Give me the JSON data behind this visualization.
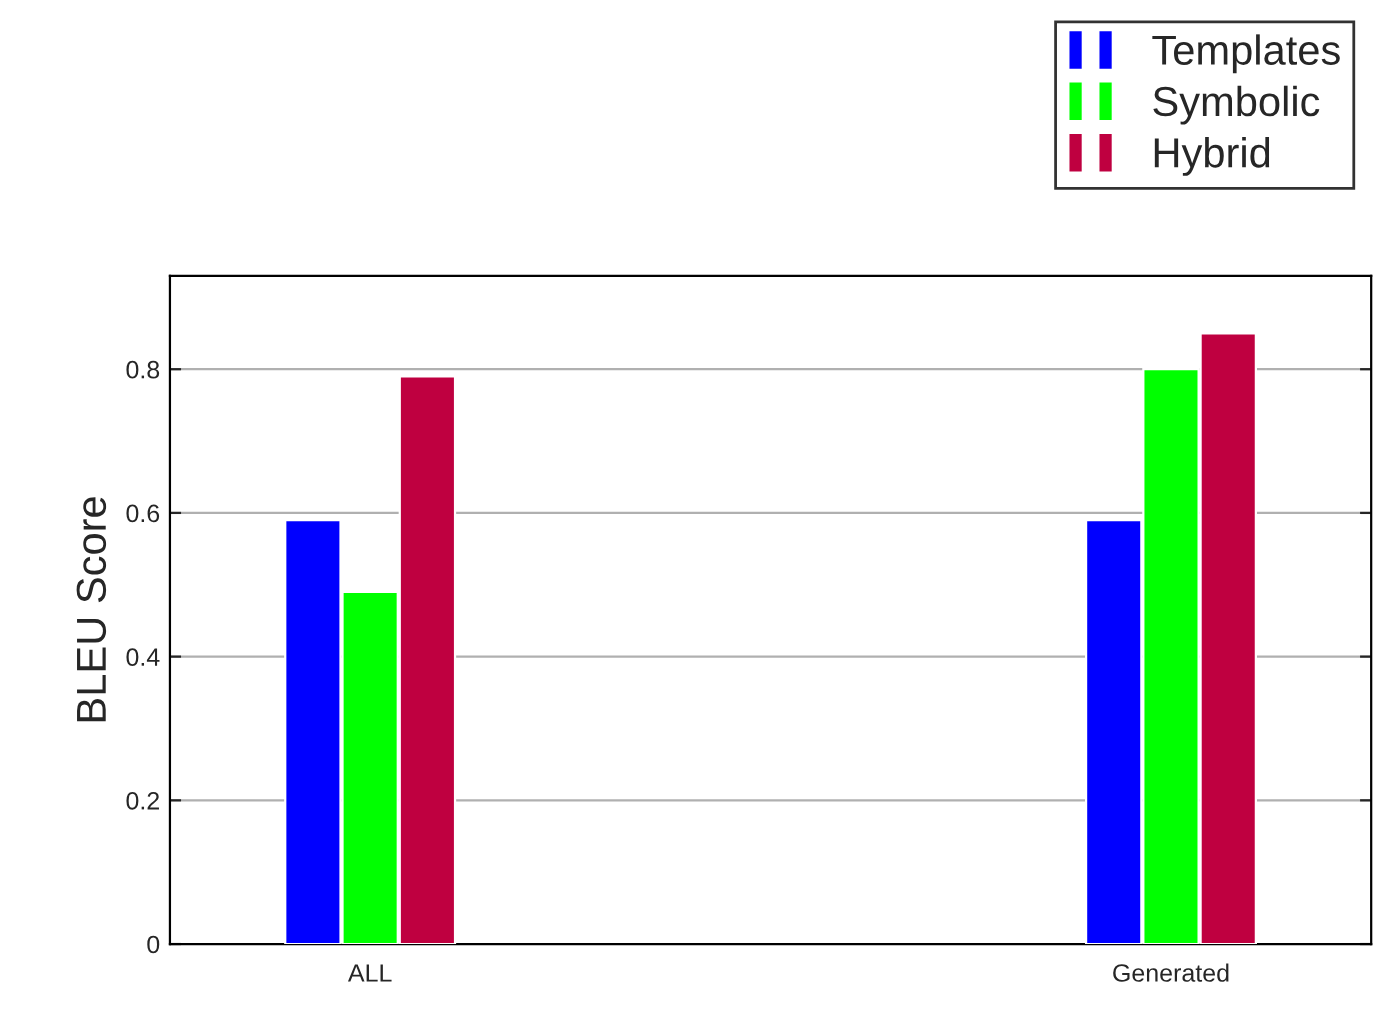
{
  "chart_data": {
    "type": "bar",
    "ylabel": "BLEU Score",
    "categories": [
      "ALL",
      "Generated"
    ],
    "series": [
      {
        "name": "Templates",
        "color": "#0000ff",
        "values": [
          0.59,
          0.59
        ]
      },
      {
        "name": "Symbolic",
        "color": "#00ff00",
        "values": [
          0.49,
          0.8
        ]
      },
      {
        "name": "Hybrid",
        "color": "#bf0040",
        "values": [
          0.79,
          0.85
        ]
      }
    ],
    "ylim": [
      0,
      0.93
    ],
    "yticks": [
      0,
      0.2,
      0.4,
      0.6,
      0.8
    ],
    "grid": "y",
    "legend": "top right"
  }
}
